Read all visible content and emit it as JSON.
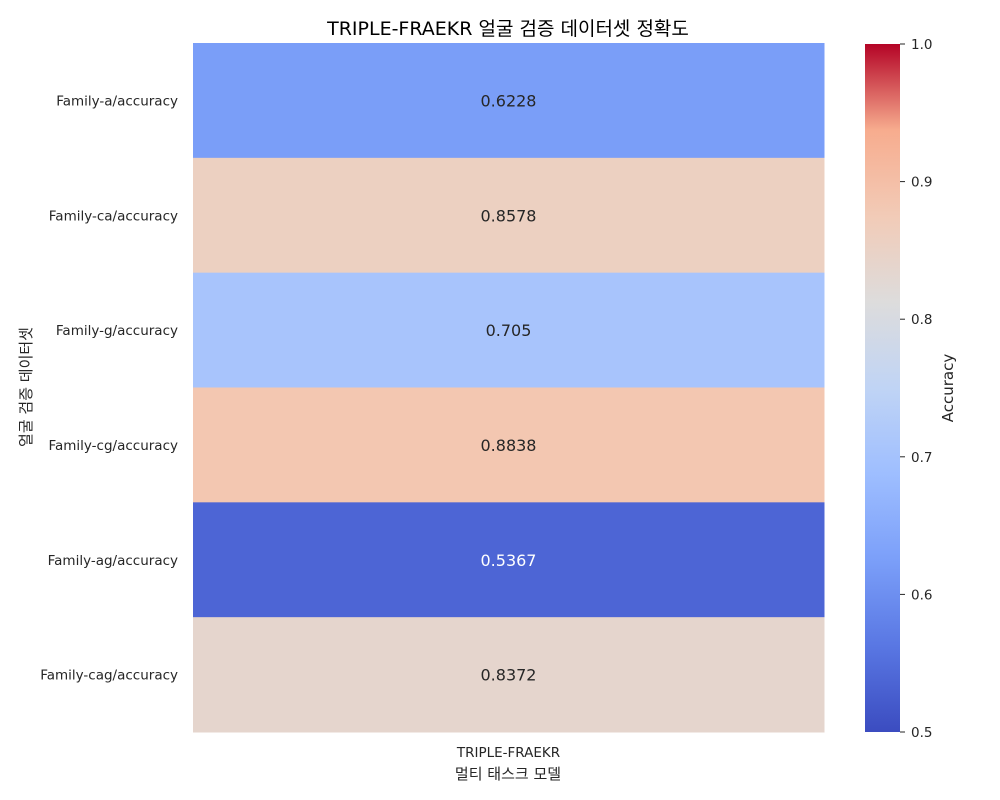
{
  "chart_data": {
    "type": "heatmap",
    "title": "TRIPLE-FRAEKR 얼굴 검증 데이터셋 정확도",
    "xlabel": "멀티 태스크 모델",
    "ylabel": "얼굴 검증 데이터셋",
    "x_categories": [
      "TRIPLE-FRAEKR"
    ],
    "y_categories": [
      "Family-a/accuracy",
      "Family-ca/accuracy",
      "Family-g/accuracy",
      "Family-cg/accuracy",
      "Family-ag/accuracy",
      "Family-cag/accuracy"
    ],
    "values": [
      [
        0.6228
      ],
      [
        0.8578
      ],
      [
        0.705
      ],
      [
        0.8838
      ],
      [
        0.5367
      ],
      [
        0.8372
      ]
    ],
    "value_labels": [
      "0.6228",
      "0.8578",
      "0.705",
      "0.8838",
      "0.5367",
      "0.8372"
    ],
    "colormap": "coolwarm",
    "vmin": 0.5,
    "vmax": 1.0,
    "colorbar": {
      "label": "Accuracy",
      "ticks": [
        "0.5",
        "0.6",
        "0.7",
        "0.8",
        "0.9",
        "1.0"
      ]
    }
  }
}
